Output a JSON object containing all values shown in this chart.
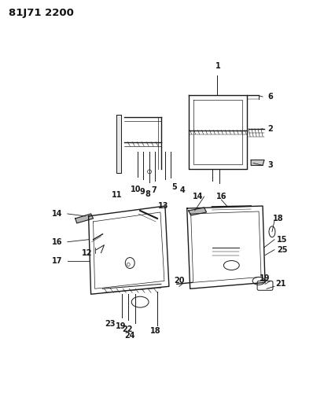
{
  "title": "81J71 2200",
  "bg_color": "#ffffff",
  "line_color": "#1a1a1a",
  "label_color": "#111111",
  "title_fontsize": 9.5,
  "label_fontsize": 7,
  "figsize": [
    3.98,
    5.33
  ],
  "dpi": 100
}
